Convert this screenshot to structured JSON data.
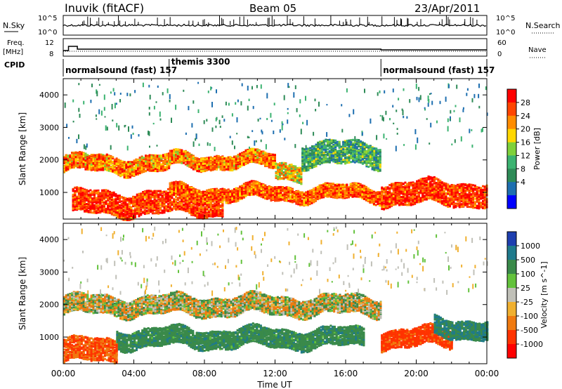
{
  "header": {
    "station": "Inuvik (fitACF)",
    "beam": "Beam 05",
    "date": "23/Apr/2011"
  },
  "top_panels": {
    "nsky_label": "N.Sky",
    "nsky_ticks": [
      "10^5",
      "10^0"
    ],
    "nsearch_label": "N.Search",
    "nsearch_ticks": [
      "10^5",
      "10^0"
    ],
    "freq_label_1": "Freq.",
    "freq_label_2": "[MHz]",
    "freq_ticks": [
      "12",
      "8"
    ],
    "nave_label": "Nave",
    "nave_ticks": [
      "60",
      "0"
    ],
    "cpid_label": "CPID",
    "cpid_segments": [
      {
        "label": "normalsound (fast) 157",
        "start": 0,
        "end": 6
      },
      {
        "label": "themis 3300",
        "start": 6,
        "end": 18
      },
      {
        "label": "normalsound (fast) 157",
        "start": 18,
        "end": 24
      }
    ]
  },
  "chart_data": [
    {
      "type": "heatmap",
      "name": "power",
      "xlabel": "",
      "ylabel": "Slant Range [km]",
      "xlim": [
        0,
        24
      ],
      "ylim": [
        180,
        4500
      ],
      "yticks": [
        1000,
        2000,
        3000,
        4000
      ],
      "colorbar_label": "Power [dB]",
      "colorbar_ticks": [
        "28",
        "24",
        "20",
        "16",
        "12",
        "8",
        "4"
      ],
      "colorbar_colors": [
        "#ff0000",
        "#ff4500",
        "#ff8c00",
        "#ffd700",
        "#7fd13b",
        "#3cb371",
        "#2e8b57",
        "#1e6fb0",
        "#0000ff"
      ],
      "echo_bands": [
        {
          "x_start": 0.0,
          "x_end": 6.0,
          "range_center": 1900,
          "width": 350,
          "power": 24
        },
        {
          "x_start": 6.0,
          "x_end": 12.0,
          "range_center": 2000,
          "width": 300,
          "power": 24
        },
        {
          "x_start": 12.0,
          "x_end": 13.5,
          "range_center": 1700,
          "width": 350,
          "power": 20
        },
        {
          "x_start": 13.5,
          "x_end": 18.0,
          "range_center": 2200,
          "width": 500,
          "power": 12
        },
        {
          "x_start": 0.5,
          "x_end": 9.0,
          "range_center": 700,
          "width": 500,
          "power": 28
        },
        {
          "x_start": 6.0,
          "x_end": 18.0,
          "range_center": 1000,
          "width": 300,
          "power": 26
        },
        {
          "x_start": 18.0,
          "x_end": 24.0,
          "range_center": 1000,
          "width": 500,
          "power": 28
        }
      ]
    },
    {
      "type": "heatmap",
      "name": "velocity",
      "xlabel": "Time UT",
      "ylabel": "Slant Range [km]",
      "xlim": [
        0,
        24
      ],
      "ylim": [
        180,
        4500
      ],
      "yticks": [
        1000,
        2000,
        3000,
        4000
      ],
      "xticks": [
        "00:00",
        "04:00",
        "08:00",
        "12:00",
        "16:00",
        "20:00",
        "00:00"
      ],
      "colorbar_label": "Velocity [m s^-1]",
      "colorbar_ticks": [
        "1000",
        "500",
        "100",
        "25",
        "-25",
        "-100",
        "-500",
        "-1000"
      ],
      "colorbar_colors": [
        "#1e3fb0",
        "#1f7a8c",
        "#3a8a4a",
        "#63c23c",
        "#c0c0b8",
        "#f0b030",
        "#f07a10",
        "#ff3300",
        "#ff0000"
      ],
      "echo_bands": [
        {
          "x_start": 0.0,
          "x_end": 18.0,
          "range_center": 2000,
          "width": 400,
          "velocity": 0
        },
        {
          "x_start": 3.0,
          "x_end": 17.0,
          "range_center": 1000,
          "width": 400,
          "velocity": 200
        },
        {
          "x_start": 0.0,
          "x_end": 3.0,
          "range_center": 600,
          "width": 500,
          "velocity": -300
        },
        {
          "x_start": 18.0,
          "x_end": 22.0,
          "range_center": 1000,
          "width": 400,
          "velocity": -400
        },
        {
          "x_start": 21.0,
          "x_end": 24.0,
          "range_center": 1300,
          "width": 400,
          "velocity": 300
        }
      ]
    }
  ],
  "colors": {
    "frame": "#000000",
    "dotted_line": "#000000"
  }
}
